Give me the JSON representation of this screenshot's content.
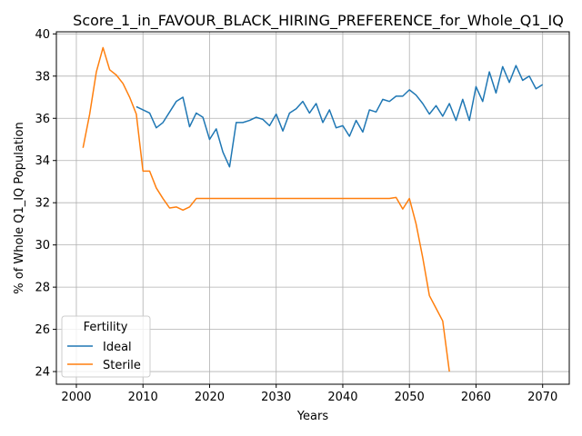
{
  "chart_data": {
    "type": "line",
    "title": "Score_1_in_FAVOUR_BLACK_HIRING_PREFERENCE_for_Whole_Q1_IQ",
    "xlabel": "Years",
    "ylabel": "% of Whole Q1_IQ Population",
    "xlim": [
      1997,
      2074
    ],
    "ylim": [
      23.4,
      40.1
    ],
    "x_ticks": [
      2000,
      2010,
      2020,
      2030,
      2040,
      2050,
      2060,
      2070
    ],
    "y_ticks": [
      24,
      26,
      28,
      30,
      32,
      34,
      36,
      38,
      40
    ],
    "grid": true,
    "legend": {
      "title": "Fertility",
      "placement": "lower-left"
    },
    "series": [
      {
        "name": "Ideal",
        "color": "#1f77b4",
        "points": [
          [
            2009,
            36.55
          ],
          [
            2010,
            36.4
          ],
          [
            2011,
            36.25
          ],
          [
            2012,
            35.55
          ],
          [
            2013,
            35.8
          ],
          [
            2014,
            36.3
          ],
          [
            2015,
            36.8
          ],
          [
            2016,
            37.0
          ],
          [
            2017,
            35.6
          ],
          [
            2018,
            36.25
          ],
          [
            2019,
            36.05
          ],
          [
            2020,
            35.0
          ],
          [
            2021,
            35.5
          ],
          [
            2022,
            34.4
          ],
          [
            2023,
            33.7
          ],
          [
            2024,
            35.8
          ],
          [
            2025,
            35.8
          ],
          [
            2026,
            35.9
          ],
          [
            2027,
            36.05
          ],
          [
            2028,
            35.95
          ],
          [
            2029,
            35.65
          ],
          [
            2030,
            36.2
          ],
          [
            2031,
            35.4
          ],
          [
            2032,
            36.25
          ],
          [
            2033,
            36.45
          ],
          [
            2034,
            36.8
          ],
          [
            2035,
            36.25
          ],
          [
            2036,
            36.7
          ],
          [
            2037,
            35.8
          ],
          [
            2038,
            36.4
          ],
          [
            2039,
            35.55
          ],
          [
            2040,
            35.65
          ],
          [
            2041,
            35.15
          ],
          [
            2042,
            35.9
          ],
          [
            2043,
            35.35
          ],
          [
            2044,
            36.4
          ],
          [
            2045,
            36.3
          ],
          [
            2046,
            36.9
          ],
          [
            2047,
            36.8
          ],
          [
            2048,
            37.05
          ],
          [
            2049,
            37.05
          ],
          [
            2050,
            37.35
          ],
          [
            2051,
            37.1
          ],
          [
            2052,
            36.7
          ],
          [
            2053,
            36.2
          ],
          [
            2054,
            36.6
          ],
          [
            2055,
            36.1
          ],
          [
            2056,
            36.7
          ],
          [
            2057,
            35.9
          ],
          [
            2058,
            36.9
          ],
          [
            2059,
            35.9
          ],
          [
            2060,
            37.5
          ],
          [
            2061,
            36.8
          ],
          [
            2062,
            38.2
          ],
          [
            2063,
            37.2
          ],
          [
            2064,
            38.45
          ],
          [
            2065,
            37.7
          ],
          [
            2066,
            38.5
          ],
          [
            2067,
            37.8
          ],
          [
            2068,
            38.0
          ],
          [
            2069,
            37.4
          ],
          [
            2070,
            37.6
          ]
        ]
      },
      {
        "name": "Sterile",
        "color": "#ff7f0e",
        "points": [
          [
            2001,
            34.6
          ],
          [
            2002,
            36.2
          ],
          [
            2003,
            38.2
          ],
          [
            2004,
            39.35
          ],
          [
            2005,
            38.3
          ],
          [
            2006,
            38.05
          ],
          [
            2007,
            37.65
          ],
          [
            2008,
            37.0
          ],
          [
            2009,
            36.2
          ],
          [
            2010,
            33.5
          ],
          [
            2011,
            33.5
          ],
          [
            2012,
            32.7
          ],
          [
            2013,
            32.2
          ],
          [
            2014,
            31.75
          ],
          [
            2015,
            31.8
          ],
          [
            2016,
            31.65
          ],
          [
            2017,
            31.8
          ],
          [
            2018,
            32.2
          ],
          [
            2019,
            32.2
          ],
          [
            2020,
            32.2
          ],
          [
            2025,
            32.2
          ],
          [
            2030,
            32.2
          ],
          [
            2035,
            32.2
          ],
          [
            2040,
            32.2
          ],
          [
            2045,
            32.2
          ],
          [
            2047,
            32.2
          ],
          [
            2048,
            32.25
          ],
          [
            2049,
            31.7
          ],
          [
            2050,
            32.2
          ],
          [
            2051,
            31.0
          ],
          [
            2052,
            29.4
          ],
          [
            2053,
            27.6
          ],
          [
            2054,
            27.0
          ],
          [
            2055,
            26.4
          ],
          [
            2056,
            24.0
          ]
        ]
      }
    ]
  }
}
